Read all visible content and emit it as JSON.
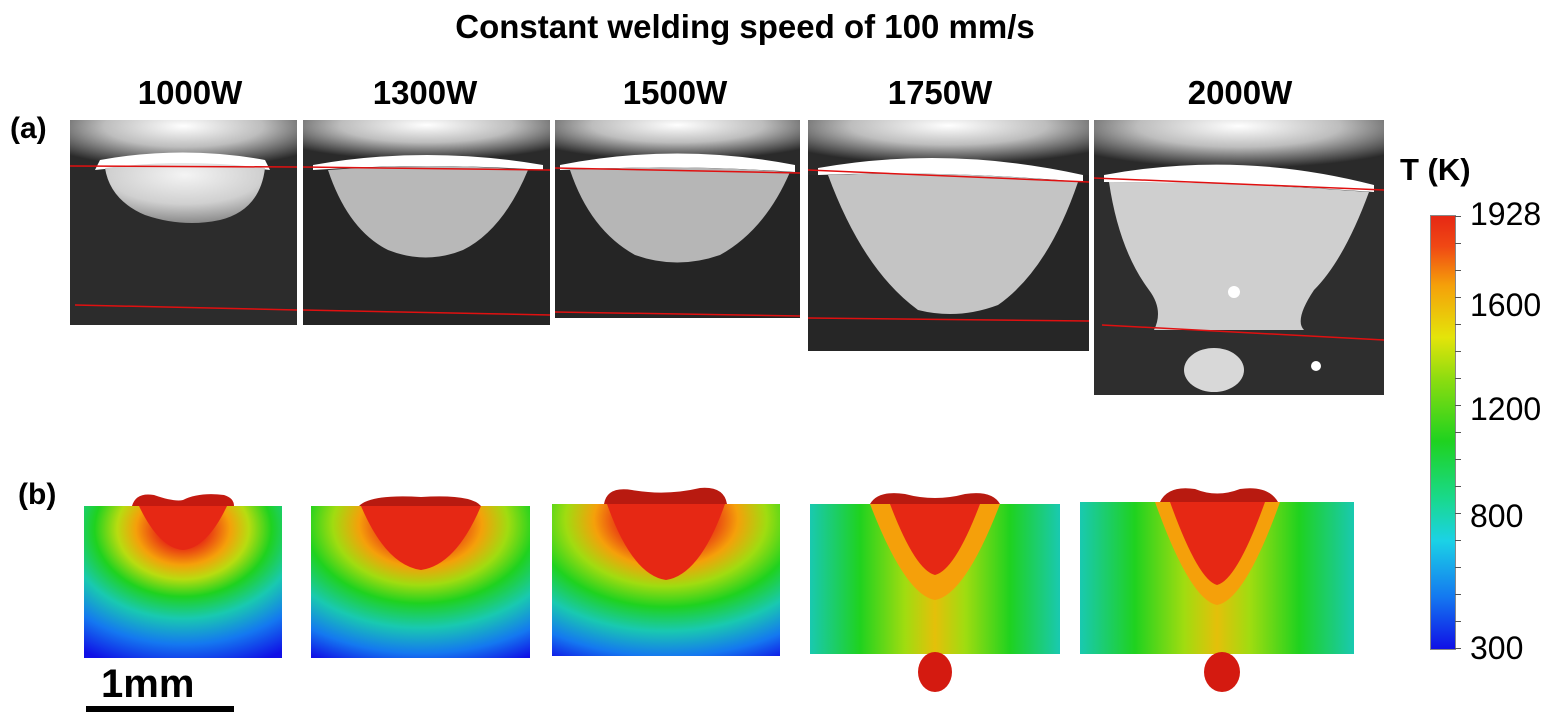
{
  "title": "Constant welding speed of 100 mm/s",
  "row_labels": {
    "a": "(a)",
    "b": "(b)"
  },
  "power_labels": [
    "1000W",
    "1300W",
    "1500W",
    "1750W",
    "2000W"
  ],
  "colorbar": {
    "title": "T (K)",
    "ticks": [
      "1928",
      "1600",
      "1200",
      "800",
      "300"
    ],
    "colors": {
      "hot": "#e62814",
      "cold": "#1010e6"
    }
  },
  "scale_bar": "1mm"
}
